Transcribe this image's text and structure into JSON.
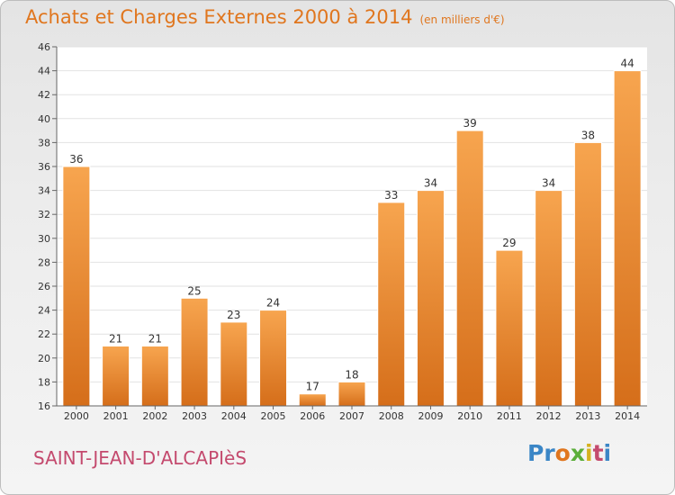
{
  "chart_data": {
    "type": "bar",
    "title": "Achats et Charges Externes 2000 à 2014",
    "subtitle": "(en milliers d'€)",
    "categories": [
      "2000",
      "2001",
      "2002",
      "2003",
      "2004",
      "2005",
      "2006",
      "2007",
      "2008",
      "2009",
      "2010",
      "2011",
      "2012",
      "2013",
      "2014"
    ],
    "values": [
      36,
      21,
      21,
      25,
      23,
      24,
      17,
      18,
      33,
      34,
      39,
      29,
      34,
      38,
      44
    ],
    "ylim": [
      16,
      46
    ],
    "yticks": [
      16,
      18,
      20,
      22,
      24,
      26,
      28,
      30,
      32,
      34,
      36,
      38,
      40,
      42,
      44,
      46
    ],
    "grid": true,
    "bar_color": "#f0913a",
    "bar_color_dark": "#cf6814"
  },
  "footer": {
    "commune": "SAINT-JEAN-D'ALCAPIèS",
    "logo": {
      "p1": "Pr",
      "p2": "o",
      "p3": "x",
      "p4": "i",
      "p5": "t",
      "p6": "i"
    }
  }
}
